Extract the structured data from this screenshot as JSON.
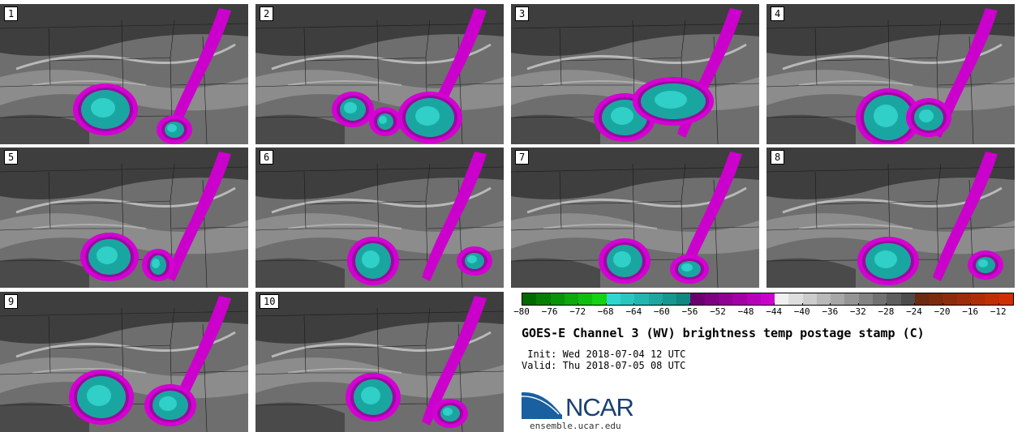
{
  "panels": [
    {
      "label": "1"
    },
    {
      "label": "2"
    },
    {
      "label": "3"
    },
    {
      "label": "4"
    },
    {
      "label": "5"
    },
    {
      "label": "6"
    },
    {
      "label": "7"
    },
    {
      "label": "8"
    },
    {
      "label": "9"
    },
    {
      "label": "10"
    }
  ],
  "colorbar": {
    "ticks": [
      "−80",
      "−76",
      "−72",
      "−68",
      "−64",
      "−60",
      "−56",
      "−52",
      "−48",
      "−44",
      "−40",
      "−36",
      "−32",
      "−28",
      "−24",
      "−20",
      "−16",
      "−12"
    ],
    "min": -80,
    "max": -10,
    "step": 2,
    "colors": {
      "green_dark": "#006a00",
      "green_bright": "#17e617",
      "teal_light": "#2fd6d0",
      "teal_dark": "#0a7770",
      "purple_dark": "#6a0070",
      "magenta": "#dd00dd",
      "gray_light": "#f0f0f0",
      "gray_dark": "#3a3a3a",
      "brown": "#6b2a12",
      "orange": "#ff7a1a",
      "red": "#e03000"
    }
  },
  "title": "GOES-E Channel 3 (WV) brightness temp postage stamp (C)",
  "init": " Init: Wed 2018-07-04 12 UTC",
  "valid": "Valid: Thu 2018-07-05 08 UTC",
  "logo": {
    "text": "NCAR"
  },
  "url": "ensemble.ucar.edu"
}
